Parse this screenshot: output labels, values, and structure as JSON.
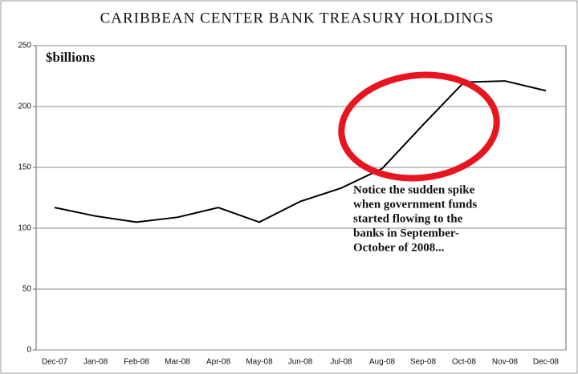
{
  "chart_data": {
    "type": "line",
    "title": "CARIBBEAN CENTER BANK TREASURY HOLDINGS",
    "ylabel": "$billions",
    "categories": [
      "Dec-07",
      "Jan-08",
      "Feb-08",
      "Mar-08",
      "Apr-08",
      "May-08",
      "Jun-08",
      "Jul-08",
      "Aug-08",
      "Sep-08",
      "Oct-08",
      "Nov-08",
      "Dec-08"
    ],
    "values": [
      117,
      110,
      105,
      109,
      117,
      105,
      122,
      133,
      149,
      185,
      220,
      221,
      213
    ],
    "color": "#000000",
    "ylim": [
      0,
      250
    ],
    "yticks": [
      0,
      50,
      100,
      150,
      200,
      250
    ],
    "grid": true,
    "annotation": [
      "Notice the sudden spike",
      "when government funds",
      "started flowing to the",
      "banks in September-",
      "October of 2008..."
    ]
  }
}
